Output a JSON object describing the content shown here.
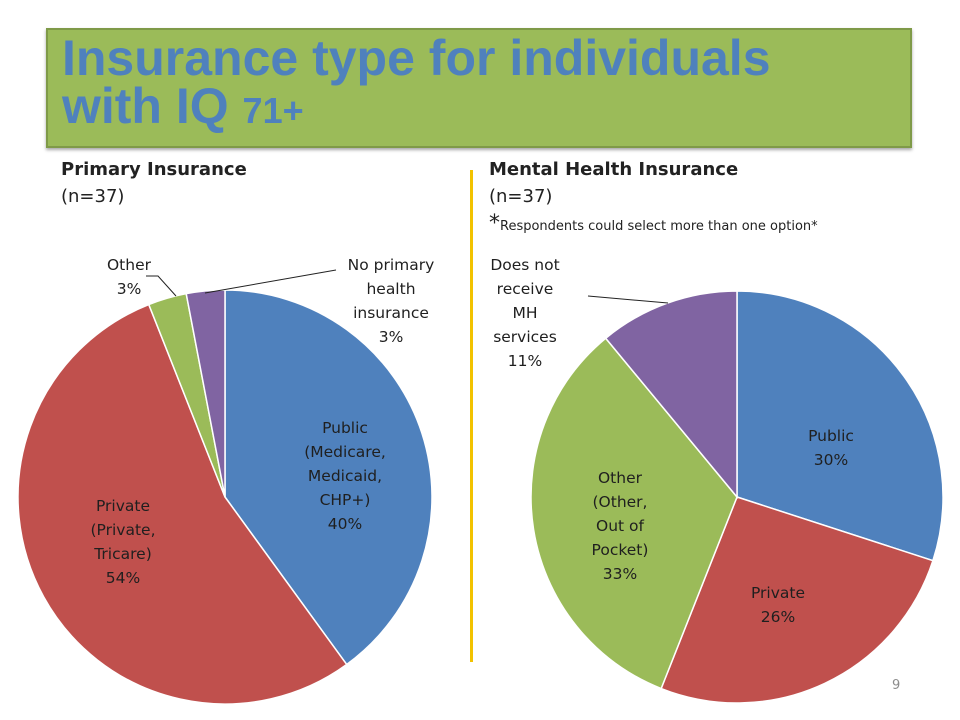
{
  "title": {
    "line1": "Insurance type for individuals",
    "line2_prefix": "with IQ ",
    "line2_number": "71+"
  },
  "colors": {
    "blue": "#4f81bd",
    "red": "#c0504d",
    "green": "#9bbb59",
    "purple": "#8064a2",
    "divider": "#f2c200"
  },
  "chart_data": [
    {
      "type": "pie",
      "title": "Primary Insurance",
      "subtitle": "(n=37)",
      "slices": [
        {
          "key": "public",
          "label": [
            "Public",
            "(Medicare,",
            "Medicaid,",
            "CHP+)",
            "40%"
          ],
          "value": 40,
          "color": "#4f81bd"
        },
        {
          "key": "private",
          "label": [
            "Private",
            "(Private,",
            "Tricare)",
            "54%"
          ],
          "value": 54,
          "color": "#c0504d"
        },
        {
          "key": "other",
          "label": [
            "Other",
            "3%"
          ],
          "value": 3,
          "color": "#9bbb59"
        },
        {
          "key": "none",
          "label": [
            "No primary",
            "health",
            "insurance",
            "3%"
          ],
          "value": 3,
          "color": "#8064a2"
        }
      ]
    },
    {
      "type": "pie",
      "title": "Mental Health Insurance",
      "subtitle": "(n=37)",
      "note_star": "*",
      "note": "Respondents could select more than one option*",
      "slices": [
        {
          "key": "public",
          "label": [
            "Public",
            "30%"
          ],
          "value": 30,
          "color": "#4f81bd"
        },
        {
          "key": "private",
          "label": [
            "Private",
            "26%"
          ],
          "value": 26,
          "color": "#c0504d"
        },
        {
          "key": "other",
          "label": [
            "Other",
            "(Other,",
            "Out of",
            "Pocket)",
            "33%"
          ],
          "value": 33,
          "color": "#9bbb59"
        },
        {
          "key": "no-mh",
          "label": [
            "Does not",
            "receive",
            "MH",
            "services",
            "11%"
          ],
          "value": 11,
          "color": "#8064a2"
        }
      ]
    }
  ],
  "page_number": "9"
}
